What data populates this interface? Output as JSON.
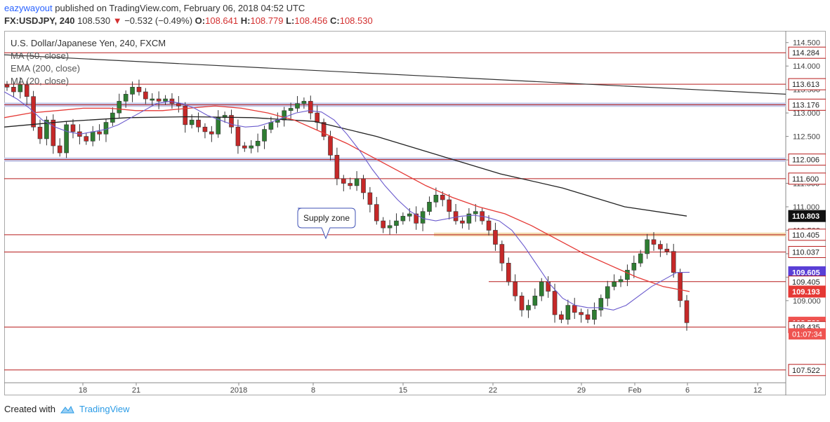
{
  "header": {
    "author": "eazywayout",
    "published_text": "published on TradingView.com, February 06, 2018 04:52 UTC"
  },
  "quote": {
    "symbol": "FX:USDJPY, 240",
    "last": "108.530",
    "change": "−0.532 (−0.49%)",
    "open_label": "O:",
    "open": "108.641",
    "high_label": "H:",
    "high": "108.779",
    "low_label": "L:",
    "low": "108.456",
    "close_label": "C:",
    "close": "108.530"
  },
  "legend": {
    "title": "U.S. Dollar/Japanese Yen, 240, FXCM",
    "indicators": [
      "MA (50, close)",
      "EMA (200, close)",
      "MA (20, close)"
    ]
  },
  "annotation": {
    "text": "Supply zone"
  },
  "footer": {
    "created_with": "Created with",
    "brand": "TradingView"
  },
  "colors": {
    "up": "#2e7d32",
    "down": "#c62828",
    "level": "#b71c1c",
    "ma50": "#e53935",
    "ema200": "#222222",
    "ma20": "#6a5acd",
    "zone_blue": "#c5cae9",
    "zone_orange": "#f3dcb0"
  },
  "chart_data": {
    "type": "candlestick",
    "y_axis": {
      "min": 107.25,
      "max": 114.75,
      "ticks": [
        "114.500",
        "114.000",
        "113.500",
        "113.000",
        "112.500",
        "112.000",
        "111.500",
        "111.000",
        "110.500",
        "110.000",
        "109.500",
        "109.000"
      ]
    },
    "x_axis": {
      "labels": [
        "18",
        "21",
        "2018",
        "8",
        "15",
        "22",
        "29",
        "Feb",
        "6",
        "12"
      ]
    },
    "price_tags": [
      {
        "value": 114.284,
        "label": "114.284",
        "style": "level"
      },
      {
        "value": 113.613,
        "label": "113.613",
        "style": "level"
      },
      {
        "value": 113.176,
        "label": "113.176",
        "style": "level"
      },
      {
        "value": 112.006,
        "label": "112.006",
        "style": "level"
      },
      {
        "value": 111.6,
        "label": "111.600",
        "style": "level"
      },
      {
        "value": 110.803,
        "label": "110.803",
        "style": "ema200"
      },
      {
        "value": 110.405,
        "label": "110.405",
        "style": "level"
      },
      {
        "value": 110.037,
        "label": "110.037",
        "style": "level"
      },
      {
        "value": 109.605,
        "label": "109.605",
        "style": "ma20"
      },
      {
        "value": 109.405,
        "label": "109.405",
        "style": "level"
      },
      {
        "value": 109.193,
        "label": "109.193",
        "style": "ma50"
      },
      {
        "value": 108.53,
        "label": "108.530",
        "style": "last"
      },
      {
        "value": 108.435,
        "label": "108.435",
        "style": "level"
      },
      {
        "value": 107.522,
        "label": "107.522",
        "style": "level"
      }
    ],
    "countdown": {
      "label": "01:07:34"
    },
    "levels": [
      114.284,
      113.613,
      113.176,
      112.006,
      111.6,
      110.405,
      110.037,
      109.405,
      108.435,
      107.522
    ],
    "zones": [
      {
        "from": 113.13,
        "to": 113.22,
        "color": "blue"
      },
      {
        "from": 111.96,
        "to": 112.05,
        "color": "blue"
      },
      {
        "from": 110.37,
        "to": 110.45,
        "color": "orange"
      }
    ],
    "close_path": [
      113.55,
      113.45,
      113.6,
      113.35,
      112.7,
      112.45,
      112.85,
      112.3,
      112.15,
      112.75,
      112.6,
      112.5,
      112.4,
      112.6,
      112.55,
      112.8,
      113.0,
      113.25,
      113.4,
      113.55,
      113.45,
      113.3,
      113.3,
      113.25,
      113.3,
      113.2,
      113.15,
      112.75,
      112.85,
      112.7,
      112.6,
      112.55,
      112.9,
      112.95,
      112.7,
      112.3,
      112.25,
      112.3,
      112.4,
      112.65,
      112.8,
      112.85,
      113.05,
      113.1,
      113.2,
      113.25,
      113.0,
      112.8,
      112.5,
      112.1,
      111.6,
      111.5,
      111.45,
      111.6,
      111.3,
      111.05,
      110.7,
      110.55,
      110.6,
      110.7,
      110.8,
      110.85,
      110.65,
      110.9,
      111.1,
      111.25,
      111.15,
      110.9,
      110.7,
      110.65,
      110.85,
      110.9,
      110.7,
      110.5,
      110.2,
      109.8,
      109.4,
      109.1,
      108.8,
      108.9,
      109.1,
      109.4,
      109.2,
      108.7,
      108.6,
      108.9,
      108.75,
      108.7,
      108.6,
      108.8,
      109.05,
      109.3,
      109.4,
      109.45,
      109.65,
      109.8,
      110.0,
      110.3,
      110.2,
      110.1,
      110.05,
      109.6,
      109.0,
      108.53
    ],
    "ma20_path": [
      113.45,
      113.3,
      113.1,
      112.85,
      112.7,
      112.6,
      112.55,
      112.6,
      112.65,
      112.75,
      112.9,
      113.05,
      113.2,
      113.25,
      113.2,
      113.1,
      112.95,
      112.85,
      112.75,
      112.7,
      112.72,
      112.8,
      112.9,
      113.0,
      113.05,
      113.02,
      112.85,
      112.55,
      112.2,
      111.8,
      111.45,
      111.15,
      110.9,
      110.75,
      110.7,
      110.75,
      110.8,
      110.82,
      110.78,
      110.7,
      110.5,
      110.15,
      109.75,
      109.35,
      109.05,
      108.9,
      108.85,
      108.85,
      108.8,
      108.9,
      109.1,
      109.3,
      109.45,
      109.6,
      109.605
    ],
    "ma50_path": [
      112.9,
      113.0,
      113.05,
      113.1,
      113.1,
      113.05,
      113.05,
      113.1,
      113.15,
      113.1,
      113.0,
      112.85,
      112.6,
      112.35,
      112.05,
      111.75,
      111.45,
      111.2,
      111.0,
      110.85,
      110.6,
      110.3,
      110.0,
      109.75,
      109.5,
      109.3,
      109.193
    ],
    "ema200_path": [
      112.7,
      112.82,
      112.9,
      112.92,
      112.9,
      112.82,
      112.5,
      112.1,
      111.7,
      111.4,
      111.0,
      110.803
    ],
    "trendline": {
      "from": 114.24,
      "to": 113.4
    }
  }
}
